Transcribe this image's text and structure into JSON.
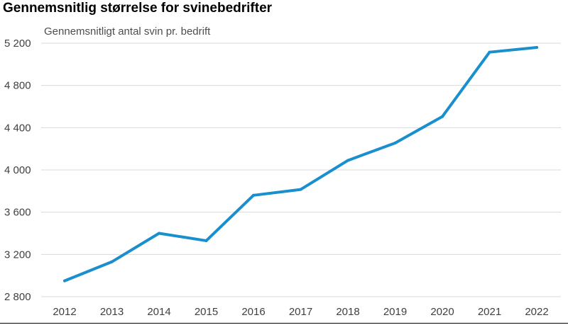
{
  "chart_data": {
    "type": "line",
    "title": "Gennemsnitlig størrelse for svinebedrifter",
    "ylabel": "Gennemsnitligt antal svin pr. bedrift",
    "xlabel": "",
    "categories": [
      "2012",
      "2013",
      "2014",
      "2015",
      "2016",
      "2017",
      "2018",
      "2019",
      "2020",
      "2021",
      "2022"
    ],
    "series": [
      {
        "values": [
          2950,
          3130,
          3400,
          3330,
          3760,
          3815,
          4090,
          4255,
          4505,
          5115,
          5160
        ]
      }
    ],
    "ylim": [
      2800,
      5200
    ],
    "yticks": [
      2800,
      3200,
      3600,
      4000,
      4400,
      4800,
      5200
    ],
    "ytick_labels": [
      "2 800",
      "3 200",
      "3 600",
      "4 000",
      "4 400",
      "4 800",
      "5 200"
    ],
    "grid": true,
    "line_color": "#1a8fcd",
    "grid_color": "#d9d9d9"
  }
}
